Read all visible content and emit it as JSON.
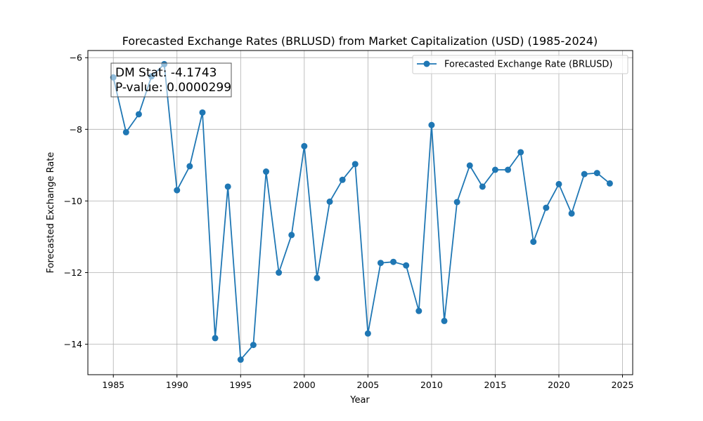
{
  "colors": {
    "series": "#1f77b4",
    "grid": "#b0b0b0",
    "frame": "#000000"
  },
  "chart_data": {
    "type": "line",
    "title": "Forecasted Exchange Rates (BRLUSD) from Market Capitalization (USD) (1985-2024)",
    "xlabel": "Year",
    "ylabel": "Forecasted Exchange Rate",
    "xlim": [
      1983,
      2025.8
    ],
    "ylim": [
      -14.85,
      -5.8
    ],
    "xticks": [
      1985,
      1990,
      1995,
      2000,
      2005,
      2010,
      2015,
      2020,
      2025
    ],
    "yticks": [
      -14,
      -12,
      -10,
      -8,
      -6
    ],
    "grid": true,
    "legend_position": "top-right",
    "series": [
      {
        "name": "Forecasted Exchange Rate (BRLUSD)",
        "marker": "circle",
        "x": [
          1985,
          1986,
          1987,
          1988,
          1989,
          1990,
          1991,
          1992,
          1993,
          1994,
          1995,
          1996,
          1997,
          1998,
          1999,
          2000,
          2001,
          2002,
          2003,
          2004,
          2005,
          2006,
          2007,
          2008,
          2009,
          2010,
          2011,
          2012,
          2013,
          2014,
          2015,
          2016,
          2017,
          2018,
          2019,
          2020,
          2021,
          2022,
          2023,
          2024
        ],
        "y": [
          -6.55,
          -8.08,
          -7.58,
          -6.52,
          -6.18,
          -9.7,
          -9.03,
          -7.53,
          -13.83,
          -9.6,
          -14.43,
          -14.02,
          -9.18,
          -12.0,
          -10.95,
          -8.47,
          -12.15,
          -10.02,
          -9.41,
          -8.97,
          -13.7,
          -11.73,
          -11.7,
          -11.8,
          -13.07,
          -7.88,
          -13.35,
          -10.03,
          -9.01,
          -9.6,
          -9.13,
          -9.13,
          -8.64,
          -11.14,
          -10.19,
          -9.53,
          -10.35,
          -9.25,
          -9.22,
          -9.51
        ]
      }
    ],
    "annotation": {
      "line1": "DM Stat: -4.1743",
      "line2": "P-value: 0.0000299",
      "position": "top-left"
    }
  }
}
